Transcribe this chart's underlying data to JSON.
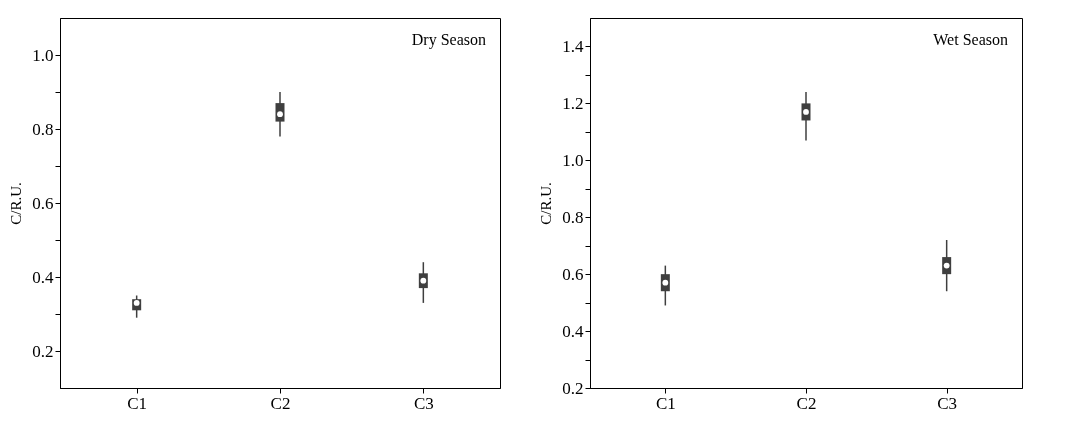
{
  "chart_data": [
    {
      "type": "box",
      "annotations": [
        "Dry Season"
      ],
      "ylabel": "C/R.U.",
      "categories": [
        "C1",
        "C2",
        "C3"
      ],
      "ylim": [
        0.1,
        1.1
      ],
      "yticks": [
        0.2,
        {
          "value": 0.3,
          "label": null
        },
        0.4,
        {
          "value": 0.5,
          "label": null
        },
        0.6,
        {
          "value": 0.7,
          "label": null
        },
        0.8,
        {
          "value": 0.9,
          "label": null
        },
        {
          "value": 1.0,
          "label": "1.0"
        }
      ],
      "grid": false,
      "series": [
        {
          "color": "#3f3f3f",
          "boxes": [
            {
              "low": 0.29,
              "q1": 0.31,
              "median": 0.33,
              "q3": 0.34,
              "high": 0.35
            },
            {
              "low": 0.78,
              "q1": 0.82,
              "median": 0.84,
              "q3": 0.87,
              "high": 0.9
            },
            {
              "low": 0.33,
              "q1": 0.37,
              "median": 0.39,
              "q3": 0.41,
              "high": 0.44
            }
          ]
        }
      ]
    },
    {
      "type": "box",
      "annotations": [
        "Wet Season"
      ],
      "ylabel": "C/R.U.",
      "categories": [
        "C1",
        "C2",
        "C3"
      ],
      "ylim": [
        0.2,
        1.5
      ],
      "yticks": [
        0.2,
        {
          "value": 0.3,
          "label": null
        },
        0.4,
        {
          "value": 0.5,
          "label": null
        },
        0.6,
        {
          "value": 0.7,
          "label": null
        },
        0.8,
        {
          "value": 0.9,
          "label": null
        },
        {
          "value": 1.0,
          "label": "1.0"
        },
        {
          "value": 1.1,
          "label": null
        },
        1.2,
        {
          "value": 1.3,
          "label": null
        },
        1.4
      ],
      "grid": false,
      "series": [
        {
          "color": "#3f3f3f",
          "boxes": [
            {
              "low": 0.49,
              "q1": 0.54,
              "median": 0.57,
              "q3": 0.6,
              "high": 0.63
            },
            {
              "low": 1.07,
              "q1": 1.14,
              "median": 1.17,
              "q3": 1.2,
              "high": 1.24
            },
            {
              "low": 0.54,
              "q1": 0.6,
              "median": 0.63,
              "q3": 0.66,
              "high": 0.72
            }
          ]
        }
      ]
    }
  ]
}
